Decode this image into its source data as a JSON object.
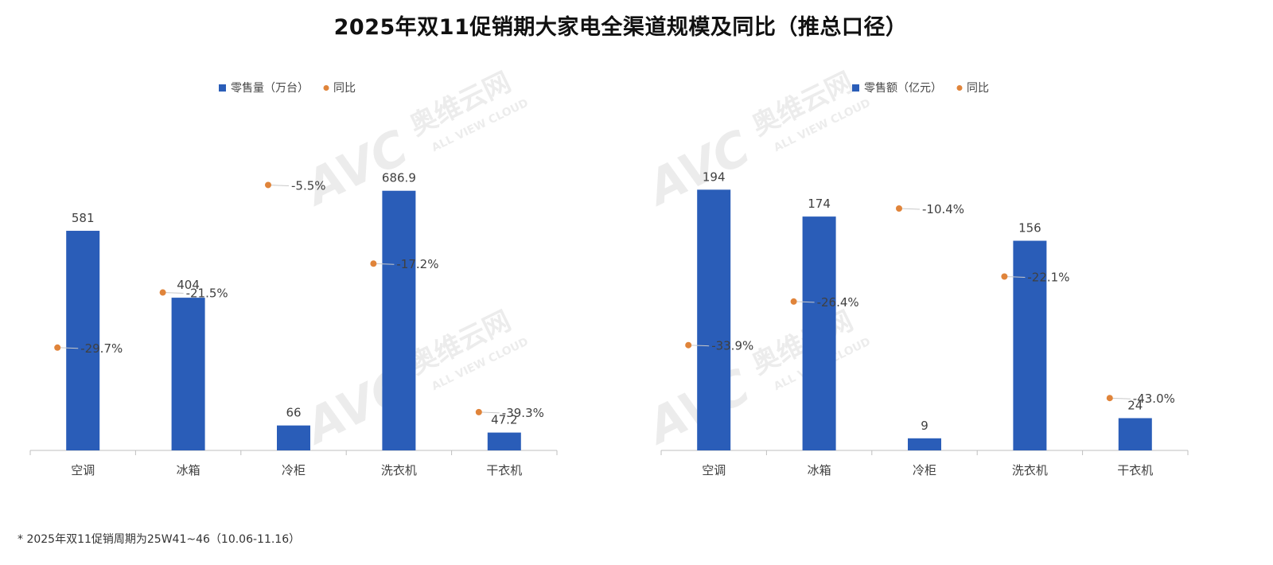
{
  "title": "2025年双11促销期大家电全渠道规模及同比（推总口径）",
  "footnote": "* 2025年双11促销周期为25W41~46（10.06-11.16）",
  "watermark": {
    "brand": "AVC",
    "cn": "奥维云网",
    "en": "ALL VIEW CLOUD"
  },
  "colors": {
    "bar": "#2a5db8",
    "yoy": "#e0843a",
    "axis": "#bfbfbf"
  },
  "chart_data": [
    {
      "type": "bar",
      "title": "",
      "legend": {
        "placement": "top",
        "bar_label": "零售量（万台）",
        "yoy_label": "同比"
      },
      "categories": [
        "空调",
        "冰箱",
        "冷柜",
        "洗衣机",
        "干衣机"
      ],
      "series": [
        {
          "name": "零售量（万台）",
          "values": [
            581,
            404,
            66,
            686.9,
            47.2
          ],
          "labels": [
            "581",
            "404",
            "66",
            "686.9",
            "47.2"
          ]
        },
        {
          "name": "同比",
          "values": [
            -29.7,
            -21.5,
            -5.5,
            -17.2,
            -39.3
          ],
          "labels": [
            "-29.7%",
            "-21.5%",
            "-5.5%",
            "-17.2%",
            "-39.3%"
          ]
        }
      ],
      "ylim": [
        0,
        800
      ],
      "yoy_range": [
        -45,
        0
      ]
    },
    {
      "type": "bar",
      "title": "",
      "legend": {
        "placement": "top",
        "bar_label": "零售额（亿元）",
        "yoy_label": "同比"
      },
      "categories": [
        "空调",
        "冰箱",
        "冷柜",
        "洗衣机",
        "干衣机"
      ],
      "series": [
        {
          "name": "零售额（亿元）",
          "values": [
            194,
            174,
            9,
            156,
            24
          ],
          "labels": [
            "194",
            "174",
            "9",
            "156",
            "24"
          ]
        },
        {
          "name": "同比",
          "values": [
            -33.9,
            -26.4,
            -10.4,
            -22.1,
            -43.0
          ],
          "labels": [
            "-33.9%",
            "-26.4%",
            "-10.4%",
            "-22.1%",
            "-43.0%"
          ]
        }
      ],
      "ylim": [
        0,
        225
      ],
      "yoy_range": [
        -52,
        0
      ]
    }
  ]
}
